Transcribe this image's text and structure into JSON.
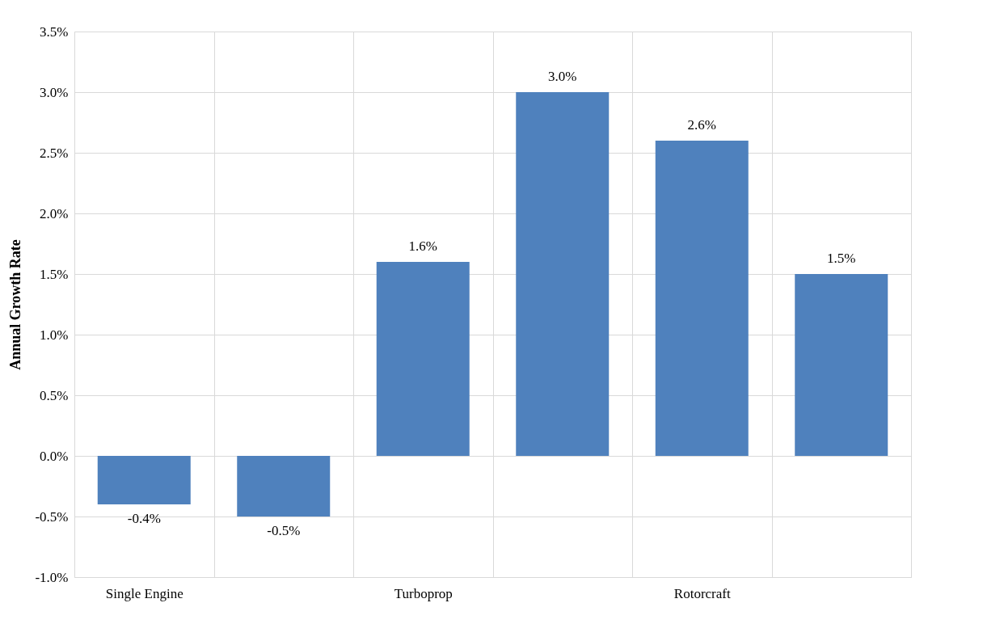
{
  "chart_data": {
    "type": "bar",
    "ylabel": "Annual Growth Rate",
    "categories": [
      "Single Engine",
      null,
      "Turboprop",
      null,
      "Rotorcraft",
      null
    ],
    "values": [
      -0.4,
      -0.5,
      1.6,
      3.0,
      2.6,
      1.5
    ],
    "value_labels": [
      "-0.4%",
      "-0.5%",
      "1.6%",
      "3.0%",
      "2.6%",
      "1.5%"
    ],
    "color": "#4f81bd",
    "ylim": [
      -1.0,
      3.5
    ],
    "yticks": [
      {
        "value": -1.0,
        "label": "-1.0%"
      },
      {
        "value": -0.5,
        "label": "-0.5%"
      },
      {
        "value": 0.0,
        "label": "0.0%"
      },
      {
        "value": 0.5,
        "label": "0.5%"
      },
      {
        "value": 1.0,
        "label": "1.0%"
      },
      {
        "value": 1.5,
        "label": "1.5%"
      },
      {
        "value": 2.0,
        "label": "2.0%"
      },
      {
        "value": 2.5,
        "label": "2.5%"
      },
      {
        "value": 3.0,
        "label": "3.0%"
      },
      {
        "value": 3.5,
        "label": "3.5%"
      }
    ],
    "grid": true
  }
}
